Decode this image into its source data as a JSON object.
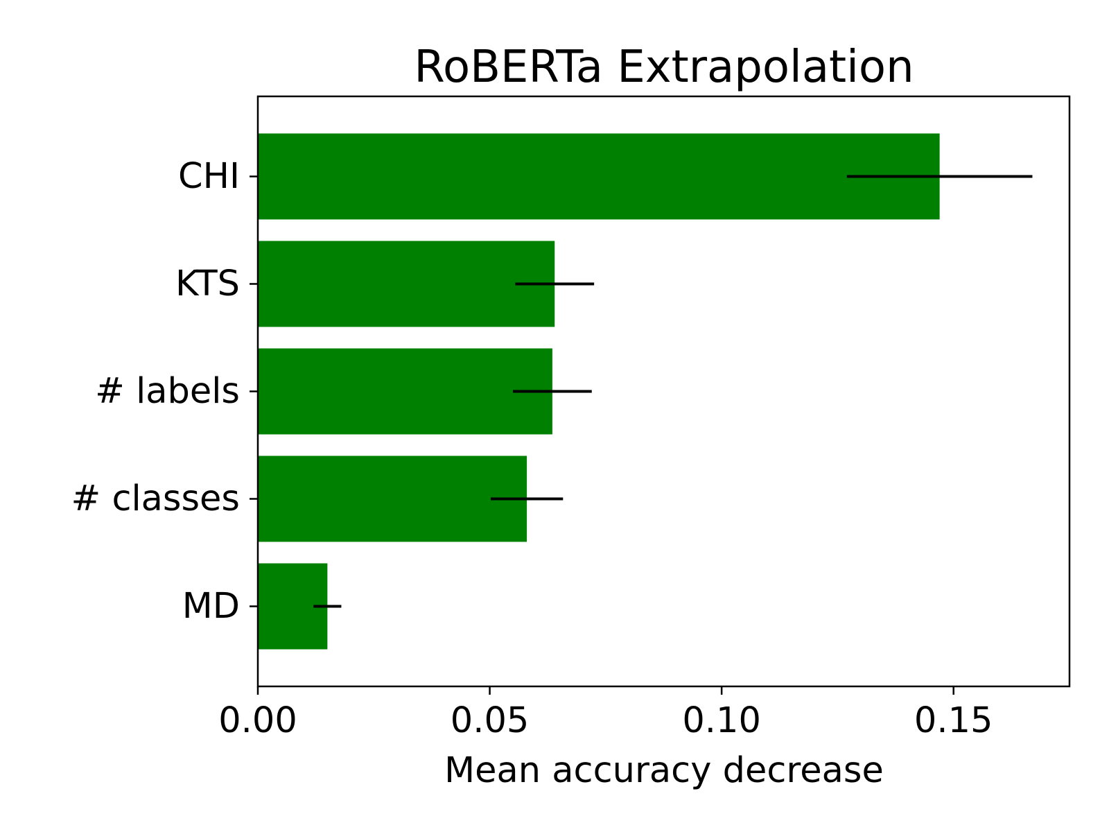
{
  "chart_data": {
    "type": "bar",
    "orientation": "horizontal",
    "title": "RoBERTa Extrapolation",
    "xlabel": "Mean accuracy decrease",
    "ylabel": "",
    "categories": [
      "CHI",
      "KTS",
      "# labels",
      "# classes",
      "MD"
    ],
    "values": [
      0.147,
      0.064,
      0.0635,
      0.058,
      0.015
    ],
    "error": [
      0.02,
      0.0085,
      0.0085,
      0.0078,
      0.003
    ],
    "xlim": [
      0,
      0.175
    ],
    "xticks": [
      "0.00",
      "0.05",
      "0.10",
      "0.15"
    ],
    "bar_color": "#008000",
    "error_color": "#000000",
    "grid": false
  }
}
